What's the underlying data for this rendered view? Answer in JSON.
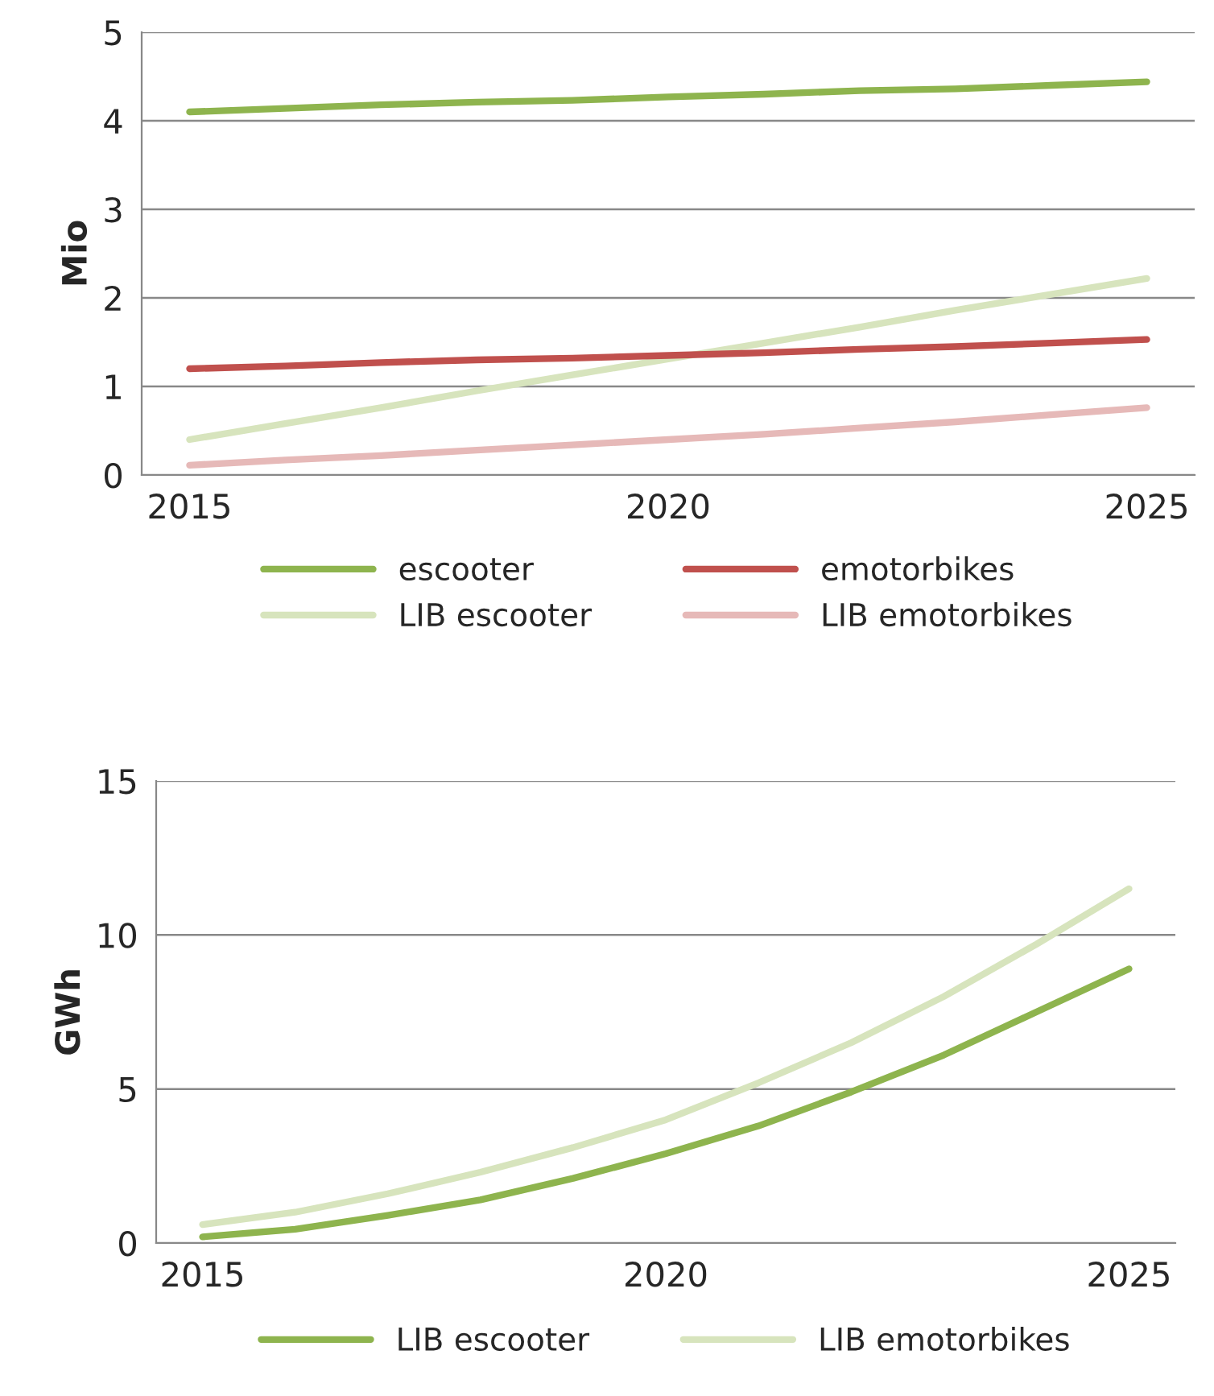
{
  "chart_data": [
    {
      "type": "line",
      "ylabel": "Mio",
      "x": [
        2015,
        2016,
        2017,
        2018,
        2019,
        2020,
        2021,
        2022,
        2023,
        2024,
        2025
      ],
      "xlim": [
        2014.5,
        2025.5
      ],
      "xticks": [
        2015,
        2020,
        2025
      ],
      "ylim": [
        0,
        5
      ],
      "yticks": [
        0,
        1,
        2,
        3,
        4,
        5
      ],
      "grid": "y",
      "legend": "bottom",
      "marker": "none",
      "line_style": "solid",
      "series": [
        {
          "name": "escooter",
          "color": "#8eb44e",
          "values": [
            4.1,
            4.14,
            4.18,
            4.21,
            4.23,
            4.27,
            4.3,
            4.34,
            4.36,
            4.4,
            4.44
          ]
        },
        {
          "name": "LIB escooter",
          "color": "#d7e4bd",
          "values": [
            0.4,
            0.58,
            0.76,
            0.95,
            1.13,
            1.31,
            1.49,
            1.67,
            1.86,
            2.04,
            2.22
          ]
        },
        {
          "name": "emotorbikes",
          "color": "#c0504d",
          "values": [
            1.2,
            1.23,
            1.27,
            1.3,
            1.32,
            1.35,
            1.38,
            1.42,
            1.45,
            1.49,
            1.53
          ]
        },
        {
          "name": "LIB emotorbikes",
          "color": "#e6b9b8",
          "values": [
            0.11,
            0.17,
            0.22,
            0.28,
            0.34,
            0.4,
            0.46,
            0.53,
            0.6,
            0.68,
            0.76
          ]
        }
      ]
    },
    {
      "type": "line",
      "ylabel": "GWh",
      "x": [
        2015,
        2016,
        2017,
        2018,
        2019,
        2020,
        2021,
        2022,
        2023,
        2024,
        2025
      ],
      "xlim": [
        2014.5,
        2025.5
      ],
      "xticks": [
        2015,
        2020,
        2025
      ],
      "ylim": [
        0,
        15
      ],
      "yticks": [
        0,
        5,
        10,
        15
      ],
      "grid": "y",
      "legend": "bottom",
      "marker": "none",
      "line_style": "solid",
      "series": [
        {
          "name": "LIB escooter",
          "color": "#8eb44e",
          "values": [
            0.2,
            0.45,
            0.9,
            1.4,
            2.1,
            2.9,
            3.8,
            4.9,
            6.1,
            7.5,
            8.9
          ]
        },
        {
          "name": "LIB emotorbikes",
          "color": "#d7e4bd",
          "values": [
            0.6,
            1.0,
            1.6,
            2.3,
            3.1,
            4.0,
            5.2,
            6.5,
            8.0,
            9.7,
            11.5
          ]
        }
      ]
    }
  ]
}
